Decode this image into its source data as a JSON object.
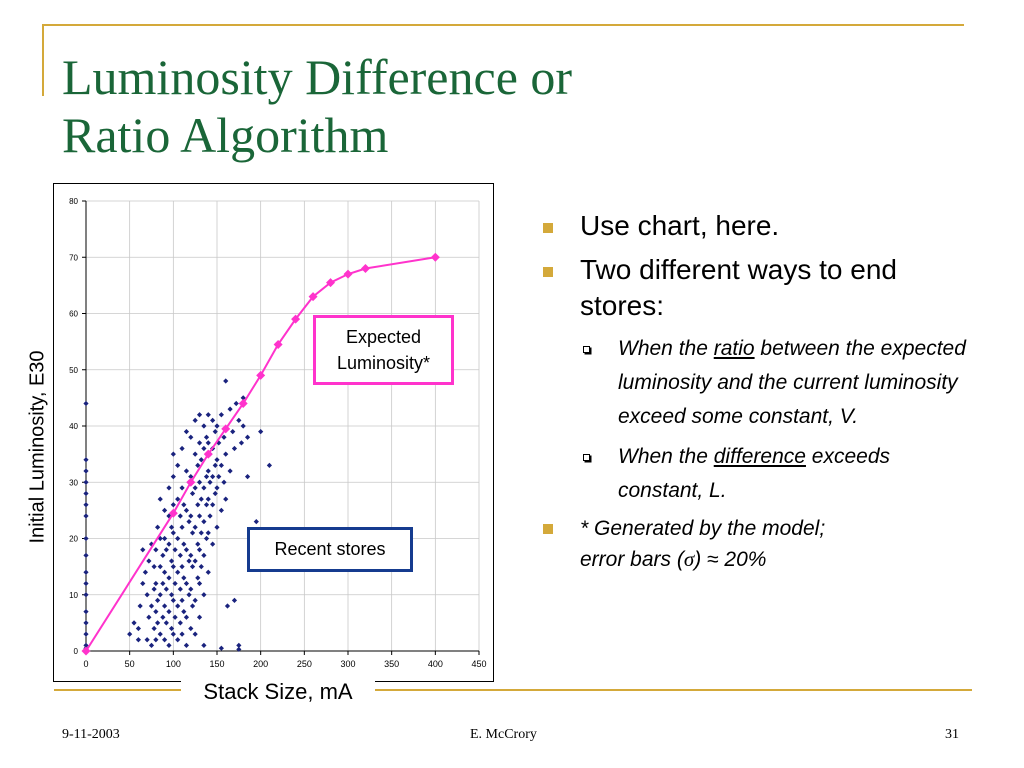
{
  "slide": {
    "title_line1": "Luminosity Difference or",
    "title_line2": "Ratio Algorithm"
  },
  "callouts": {
    "expected_line1": "Expected",
    "expected_line2": "Luminosity*",
    "recent": "Recent stores"
  },
  "bullets": {
    "item1": "Use chart, here.",
    "item2": "Two different ways to end stores:",
    "sub1_before": "When the ",
    "sub1_underlined": "ratio",
    "sub1_after": " between the expected luminosity and the current luminosity exceed some constant, V.",
    "sub2_before": "When the ",
    "sub2_underlined": "difference",
    "sub2_after": " exceeds constant, L.",
    "note_line1": "* Generated by the model;",
    "note_line2_before": "error bars (",
    "note_sigma": "σ",
    "note_line2_after": ") ≈ 20%"
  },
  "footer": {
    "date": "9-11-2003",
    "author": "E. McCrory",
    "page": "31"
  },
  "colors": {
    "title": "#1a6638",
    "bullet": "#d4a93a",
    "expected_series": "#ff33cc",
    "scatter_series": "#1a237e",
    "recent_border": "#153b8f"
  },
  "chart_data": {
    "type": "scatter",
    "xlabel": "Stack Size, mA",
    "ylabel": "Initial Luminosity, E30",
    "xlim": [
      0,
      450
    ],
    "ylim": [
      0,
      80
    ],
    "x_ticks": [
      0,
      50,
      100,
      150,
      200,
      250,
      300,
      350,
      400,
      450
    ],
    "y_ticks": [
      0,
      10,
      20,
      30,
      40,
      50,
      60,
      70,
      80
    ],
    "grid": true,
    "series": [
      {
        "name": "Expected Luminosity*",
        "style": "line-diamond",
        "x": [
          0,
          100,
          120,
          140,
          160,
          180,
          200,
          220,
          240,
          260,
          280,
          300,
          320,
          400
        ],
        "y": [
          0,
          24.5,
          30,
          35,
          39.5,
          44,
          49,
          54.5,
          59,
          63,
          65.5,
          67,
          68,
          70
        ]
      },
      {
        "name": "Recent stores",
        "style": "scatter-diamond",
        "x": [
          0,
          0,
          0,
          0,
          0,
          0,
          0,
          0,
          0,
          0,
          0,
          0,
          0,
          0,
          0,
          0,
          0,
          50,
          55,
          60,
          60,
          62,
          65,
          65,
          68,
          70,
          70,
          72,
          72,
          75,
          75,
          75,
          78,
          78,
          78,
          80,
          80,
          80,
          80,
          82,
          82,
          82,
          85,
          85,
          85,
          85,
          85,
          88,
          88,
          88,
          90,
          90,
          90,
          90,
          90,
          92,
          92,
          92,
          95,
          95,
          95,
          95,
          95,
          95,
          98,
          98,
          98,
          98,
          100,
          100,
          100,
          100,
          100,
          100,
          100,
          102,
          102,
          102,
          105,
          105,
          105,
          105,
          105,
          105,
          108,
          108,
          108,
          108,
          110,
          110,
          110,
          110,
          110,
          110,
          112,
          112,
          112,
          112,
          115,
          115,
          115,
          115,
          115,
          115,
          115,
          118,
          118,
          118,
          118,
          120,
          120,
          120,
          120,
          120,
          120,
          122,
          122,
          122,
          122,
          125,
          125,
          125,
          125,
          125,
          125,
          125,
          128,
          128,
          128,
          128,
          130,
          130,
          130,
          130,
          130,
          130,
          130,
          132,
          132,
          132,
          132,
          135,
          135,
          135,
          135,
          135,
          135,
          138,
          138,
          138,
          138,
          140,
          140,
          140,
          140,
          140,
          140,
          142,
          142,
          142,
          145,
          145,
          145,
          145,
          145,
          148,
          148,
          148,
          150,
          150,
          150,
          150,
          152,
          152,
          155,
          155,
          155,
          158,
          158,
          160,
          160,
          160,
          162,
          165,
          165,
          168,
          170,
          170,
          172,
          175,
          175,
          178,
          180,
          180,
          185,
          185,
          190,
          195,
          200,
          210,
          135,
          155,
          175
        ],
        "y": [
          44,
          34,
          30,
          28,
          24,
          20,
          17,
          14,
          10,
          7,
          5,
          3,
          1,
          32,
          26,
          12,
          0.5,
          3,
          5,
          2,
          4,
          8,
          12,
          18,
          14,
          2,
          10,
          16,
          6,
          1,
          8,
          19,
          11,
          4,
          15,
          2,
          7,
          12,
          18,
          22,
          9,
          5,
          3,
          10,
          15,
          20,
          27,
          6,
          12,
          17,
          2,
          8,
          14,
          20,
          25,
          5,
          11,
          18,
          1,
          7,
          13,
          19,
          24,
          29,
          4,
          10,
          16,
          22,
          3,
          9,
          15,
          21,
          26,
          31,
          35,
          6,
          12,
          18,
          2,
          8,
          14,
          20,
          27,
          33,
          5,
          11,
          17,
          24,
          3,
          9,
          15,
          22,
          29,
          36,
          7,
          13,
          19,
          26,
          1,
          6,
          12,
          18,
          25,
          32,
          39,
          10,
          16,
          23,
          30,
          4,
          11,
          17,
          24,
          31,
          38,
          8,
          15,
          21,
          28,
          3,
          9,
          16,
          22,
          29,
          35,
          41,
          13,
          19,
          26,
          33,
          6,
          12,
          18,
          24,
          30,
          37,
          42,
          15,
          21,
          27,
          34,
          10,
          17,
          23,
          29,
          36,
          40,
          20,
          26,
          31,
          38,
          14,
          21,
          27,
          32,
          37,
          42,
          24,
          30,
          35,
          19,
          26,
          31,
          36,
          41,
          28,
          33,
          39,
          22,
          29,
          34,
          40,
          31,
          37,
          25,
          33,
          42,
          30,
          38,
          27,
          35,
          48,
          8,
          32,
          43,
          39,
          9,
          36,
          44,
          41,
          1,
          37,
          45,
          40,
          38,
          31,
          19,
          23,
          39,
          33,
          1,
          0.5,
          0.3
        ]
      }
    ]
  }
}
